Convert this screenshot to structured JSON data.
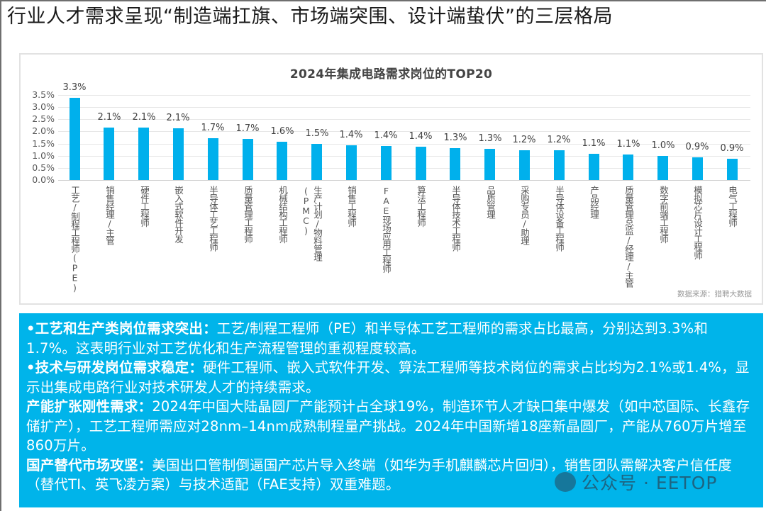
{
  "slide": {
    "title": "行业人才需求呈现“制造端扛旗、市场端突围、设计端蛰伏”的三层格局"
  },
  "chart": {
    "title": "2024年集成电路需求岗位的TOP20",
    "source": "数据来源：猎聘大数据",
    "bar_color": "#00b0ec"
  },
  "chart_data": {
    "type": "bar",
    "title": "2024年集成电路需求岗位的TOP20",
    "xlabel": "",
    "ylabel": "",
    "ylim": [
      0,
      3.5
    ],
    "yticks": [
      "0.0%",
      "0.5%",
      "1.0%",
      "1.5%",
      "2.0%",
      "2.5%",
      "3.0%",
      "3.5%"
    ],
    "grid": true,
    "legend": "none",
    "categories": [
      "工艺/制程工程师(PE)",
      "销售经理/主管",
      "硬件工程师",
      "嵌入式软件开发",
      "半导体工艺工程师",
      "质量管理工程师",
      "机械结构工程师",
      "生产计划/物料管理(PMC)",
      "销售工程师",
      "FAE现场应用工程师",
      "算法工程师",
      "半导体技术工程师",
      "品质管理",
      "采购专员/助理",
      "半导体设备工程师",
      "产品经理",
      "质量管理总监/经理/主管",
      "数字前端工程师",
      "模拟芯片设计工程师",
      "电气工程师"
    ],
    "values": [
      3.3,
      2.1,
      2.1,
      2.1,
      1.7,
      1.7,
      1.6,
      1.5,
      1.4,
      1.4,
      1.4,
      1.3,
      1.3,
      1.2,
      1.2,
      1.1,
      1.1,
      1.0,
      0.9,
      0.9
    ],
    "bar_heights_est": [
      3.37,
      2.15,
      2.15,
      2.12,
      1.71,
      1.69,
      1.58,
      1.49,
      1.44,
      1.41,
      1.38,
      1.32,
      1.27,
      1.22,
      1.22,
      1.09,
      1.06,
      0.98,
      0.92,
      0.87
    ],
    "labels": [
      "3.3%",
      "2.1%",
      "2.1%",
      "2.1%",
      "1.7%",
      "1.7%",
      "1.6%",
      "1.5%",
      "1.4%",
      "1.4%",
      "1.4%",
      "1.3%",
      "1.3%",
      "1.2%",
      "1.2%",
      "1.1%",
      "1.1%",
      "1.0%",
      "0.9%",
      "0.9%"
    ],
    "unit": "%"
  },
  "notes": [
    {
      "heading": "•工艺和生产类岗位需求突出",
      "colon": "：",
      "text": "工艺/制程工程师（PE）和半导体工艺工程师的需求占比最高，分别达到3.3%和1.7%。这表明行业对工艺优化和生产流程管理的重视程度较高。"
    },
    {
      "heading": "•技术与研发岗位需求稳定",
      "colon": "：",
      "text": "硬件工程师、嵌入式软件开发、算法工程师等技术岗位的需求占比均为2.1%或1.4%，显示出集成电路行业对技术研发人才的持续需求。"
    },
    {
      "heading": "产能扩张刚性需求",
      "colon": "：",
      "text": "2024年中国大陆晶圆厂产能预计占全球19%，制造环节人才缺口集中爆发（如中芯国际、长鑫存储扩产），工艺工程师需应对28nm–14nm成熟制程量产挑战。2024年中国新增18座新晶圆厂，产能从760万片增至860万片。"
    },
    {
      "heading": "国产替代市场攻坚",
      "colon": "：",
      "text": "美国出口管制倒逼国产芯片导入终端（如华为手机麒麟芯片回归），销售团队需解决客户信任度（替代TI、英飞凌方案）与技术适配（FAE支持）双重难题。"
    }
  ],
  "watermark": {
    "icon": "wechat-icon",
    "text": "公众号 · EETOP"
  }
}
